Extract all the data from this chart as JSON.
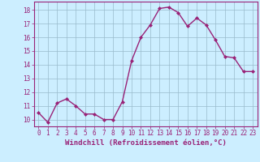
{
  "x": [
    0,
    1,
    2,
    3,
    4,
    5,
    6,
    7,
    8,
    9,
    10,
    11,
    12,
    13,
    14,
    15,
    16,
    17,
    18,
    19,
    20,
    21,
    22,
    23
  ],
  "y": [
    10.5,
    9.8,
    11.2,
    11.5,
    11.0,
    10.4,
    10.4,
    10.0,
    10.0,
    11.3,
    14.3,
    16.0,
    16.9,
    18.1,
    18.2,
    17.8,
    16.8,
    17.4,
    16.9,
    15.8,
    14.6,
    14.5,
    13.5,
    13.5
  ],
  "line_color": "#992277",
  "marker": "D",
  "marker_size": 2.0,
  "bg_color": "#cceeff",
  "grid_color": "#99bbcc",
  "xlabel": "Windchill (Refroidissement éolien,°C)",
  "xlabel_fontsize": 6.5,
  "ylabel_ticks": [
    10,
    11,
    12,
    13,
    14,
    15,
    16,
    17,
    18
  ],
  "xlim": [
    -0.5,
    23.5
  ],
  "ylim": [
    9.5,
    18.6
  ],
  "xtick_labels": [
    "0",
    "1",
    "2",
    "3",
    "4",
    "5",
    "6",
    "7",
    "8",
    "9",
    "10",
    "11",
    "12",
    "13",
    "14",
    "15",
    "16",
    "17",
    "18",
    "19",
    "20",
    "21",
    "22",
    "23"
  ],
  "tick_fontsize": 5.5,
  "line_width": 1.0
}
